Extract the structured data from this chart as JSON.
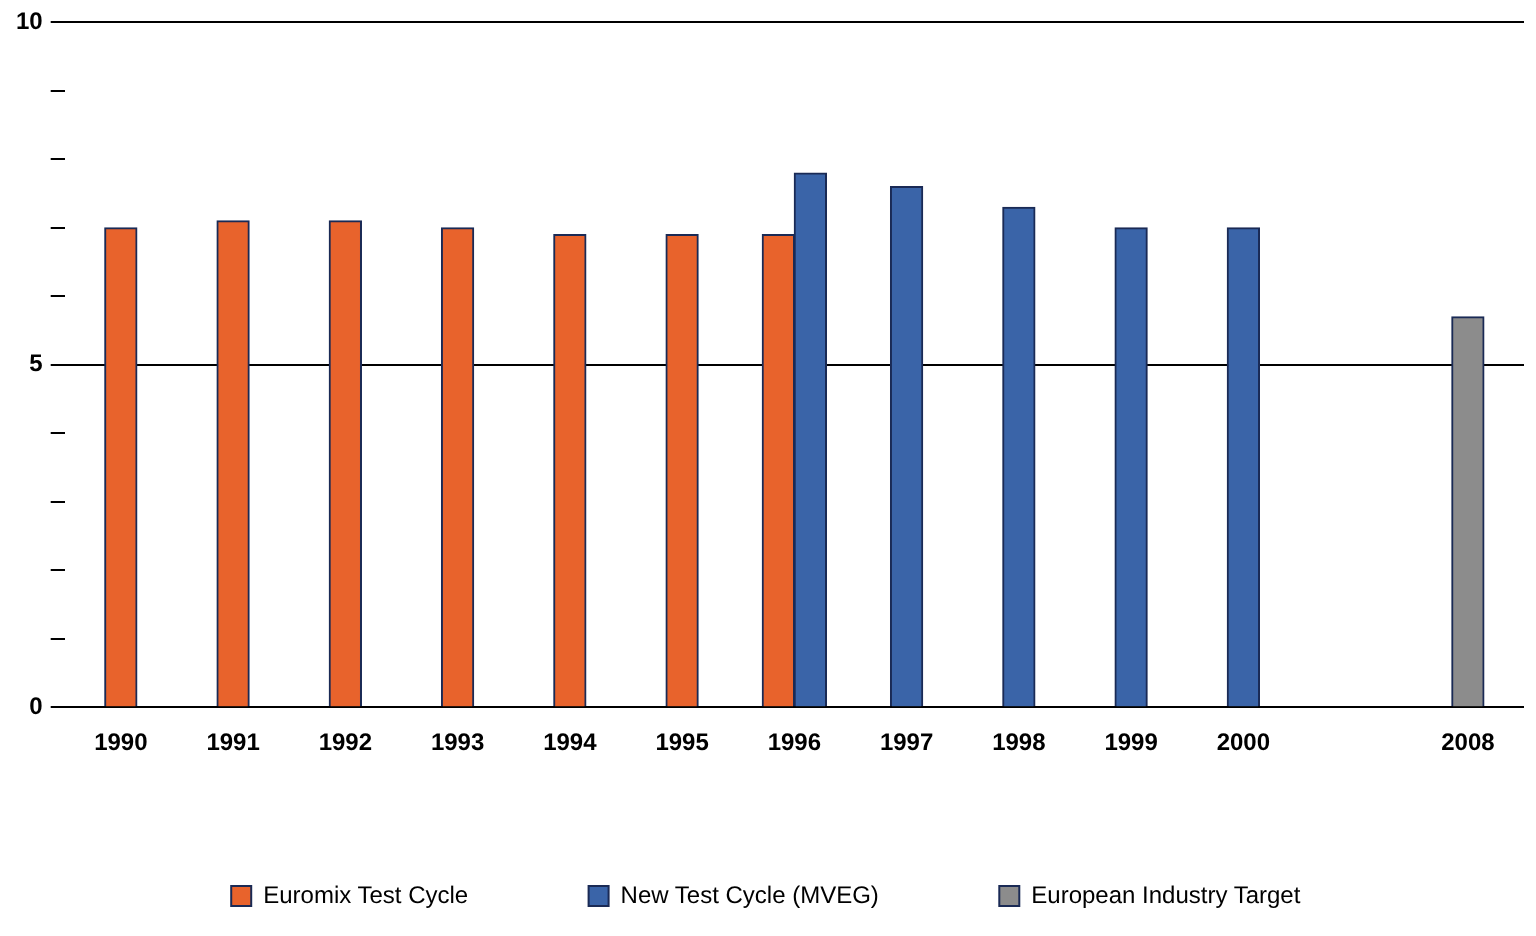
{
  "chart_data": {
    "type": "bar",
    "categories": [
      "1990",
      "1991",
      "1992",
      "1993",
      "1994",
      "1995",
      "1996",
      "1997",
      "1998",
      "1999",
      "2000",
      null,
      "2008"
    ],
    "series": [
      {
        "name": "Euromix Test Cycle",
        "color": "#e8632c",
        "values": [
          7.0,
          7.1,
          7.1,
          7.0,
          6.9,
          6.9,
          6.9,
          null,
          null,
          null,
          null,
          null,
          null
        ]
      },
      {
        "name": "New Test Cycle (MVEG)",
        "color": "#3a64a8",
        "values": [
          null,
          null,
          null,
          null,
          null,
          null,
          7.8,
          7.6,
          7.3,
          7.0,
          7.0,
          null,
          null
        ]
      },
      {
        "name": "European Industry Target",
        "color": "#8c8c8c",
        "values": [
          null,
          null,
          null,
          null,
          null,
          null,
          null,
          null,
          null,
          null,
          null,
          null,
          5.7
        ]
      }
    ],
    "ylim": [
      0,
      10
    ],
    "yticks": [
      0,
      {
        "value": 1,
        "label": null
      },
      {
        "value": 2,
        "label": null
      },
      {
        "value": 3,
        "label": null
      },
      {
        "value": 4,
        "label": null
      },
      5,
      {
        "value": 6,
        "label": null
      },
      {
        "value": 7,
        "label": null
      },
      {
        "value": 8,
        "label": null
      },
      {
        "value": 9,
        "label": null
      },
      10
    ],
    "grid": "y",
    "legend": "bottom"
  }
}
